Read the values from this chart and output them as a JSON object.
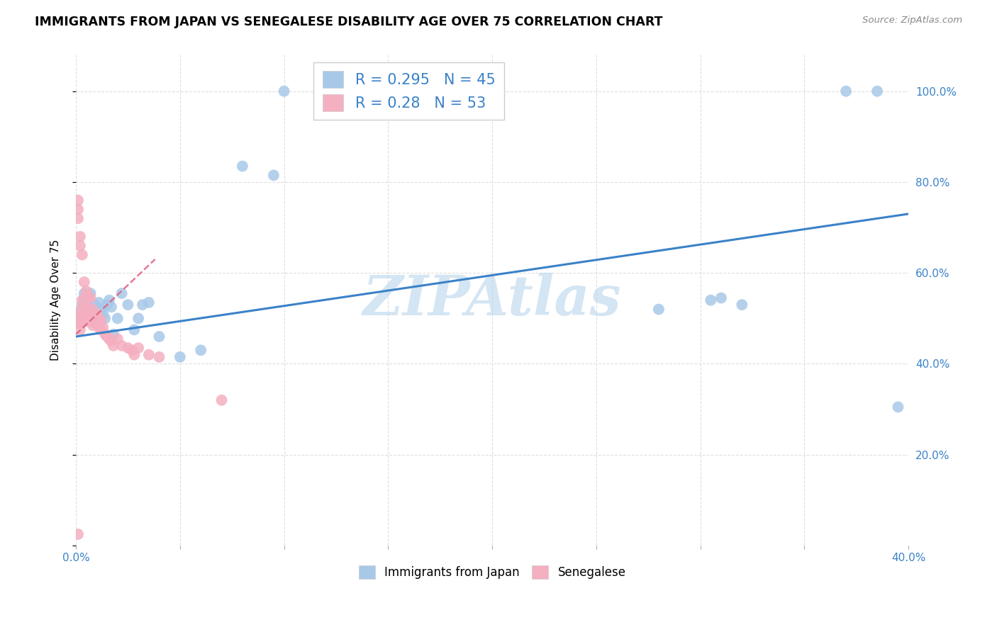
{
  "title": "IMMIGRANTS FROM JAPAN VS SENEGALESE DISABILITY AGE OVER 75 CORRELATION CHART",
  "source": "Source: ZipAtlas.com",
  "ylabel": "Disability Age Over 75",
  "xmin": 0.0,
  "xmax": 0.4,
  "ymin": 0.0,
  "ymax": 1.08,
  "japan_color": "#a8c8e8",
  "senegal_color": "#f4afc0",
  "japan_R": 0.295,
  "japan_N": 45,
  "senegal_R": 0.28,
  "senegal_N": 53,
  "japan_line_color": "#3a82c8",
  "senegal_line_color": "#e06080",
  "watermark": "ZIPAtlas",
  "watermark_color": "#b8d4ec",
  "japan_line_x0": 0.0,
  "japan_line_x1": 0.4,
  "japan_line_y0": 0.46,
  "japan_line_y1": 0.73,
  "senegal_line_x0": 0.0,
  "senegal_line_x1": 0.038,
  "senegal_line_y0": 0.465,
  "senegal_line_y1": 0.63,
  "japan_x": [
    0.001,
    0.001,
    0.002,
    0.002,
    0.003,
    0.003,
    0.003,
    0.004,
    0.004,
    0.005,
    0.005,
    0.006,
    0.007,
    0.008,
    0.009,
    0.009,
    0.01,
    0.011,
    0.012,
    0.013,
    0.014,
    0.015,
    0.016,
    0.017,
    0.018,
    0.02,
    0.022,
    0.025,
    0.028,
    0.03,
    0.032,
    0.035,
    0.04,
    0.05,
    0.06,
    0.08,
    0.095,
    0.1,
    0.28,
    0.305,
    0.31,
    0.32,
    0.37,
    0.385,
    0.395
  ],
  "japan_y": [
    0.505,
    0.495,
    0.515,
    0.49,
    0.53,
    0.51,
    0.495,
    0.555,
    0.545,
    0.54,
    0.505,
    0.495,
    0.555,
    0.52,
    0.53,
    0.51,
    0.505,
    0.535,
    0.52,
    0.51,
    0.5,
    0.53,
    0.54,
    0.525,
    0.465,
    0.5,
    0.555,
    0.53,
    0.475,
    0.5,
    0.53,
    0.535,
    0.46,
    0.415,
    0.43,
    0.835,
    0.815,
    1.0,
    0.52,
    0.54,
    0.545,
    0.53,
    1.0,
    1.0,
    0.305
  ],
  "senegal_x": [
    0.001,
    0.001,
    0.001,
    0.001,
    0.002,
    0.002,
    0.002,
    0.002,
    0.002,
    0.003,
    0.003,
    0.003,
    0.003,
    0.003,
    0.004,
    0.004,
    0.004,
    0.005,
    0.005,
    0.005,
    0.005,
    0.006,
    0.006,
    0.007,
    0.007,
    0.007,
    0.008,
    0.008,
    0.008,
    0.009,
    0.009,
    0.01,
    0.01,
    0.011,
    0.011,
    0.012,
    0.012,
    0.013,
    0.014,
    0.015,
    0.016,
    0.017,
    0.018,
    0.02,
    0.022,
    0.025,
    0.027,
    0.028,
    0.03,
    0.035,
    0.04,
    0.07,
    0.001
  ],
  "senegal_y": [
    0.76,
    0.74,
    0.72,
    0.49,
    0.68,
    0.66,
    0.51,
    0.495,
    0.475,
    0.64,
    0.54,
    0.525,
    0.51,
    0.49,
    0.58,
    0.52,
    0.51,
    0.56,
    0.55,
    0.51,
    0.495,
    0.545,
    0.52,
    0.545,
    0.51,
    0.495,
    0.52,
    0.505,
    0.485,
    0.51,
    0.49,
    0.51,
    0.49,
    0.5,
    0.48,
    0.495,
    0.475,
    0.48,
    0.465,
    0.46,
    0.455,
    0.45,
    0.44,
    0.455,
    0.44,
    0.435,
    0.43,
    0.42,
    0.435,
    0.42,
    0.415,
    0.32,
    0.025
  ]
}
